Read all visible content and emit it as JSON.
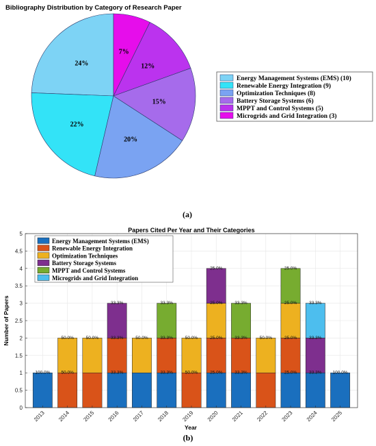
{
  "colors": {
    "pie": [
      "#7DD3F5",
      "#33E3F7",
      "#7AA3F2",
      "#A66BEB",
      "#BB33EE",
      "#E60DEB"
    ],
    "bar_layers": [
      "#1A6FBE",
      "#D95319",
      "#EDB120",
      "#7E2F8E",
      "#77AC30",
      "#4DBEEE"
    ]
  },
  "chart_data": [
    {
      "type": "pie",
      "title": "Bibliography Distribution by Category of Research Paper",
      "panel_label": "(a)",
      "legend_position": "right",
      "slices": [
        {
          "name": "Energy Management Systems (EMS) (10)",
          "value": 10,
          "label": "24%"
        },
        {
          "name": "Renewable Energy Integration (9)",
          "value": 9,
          "label": "22%"
        },
        {
          "name": "Optimization Techniques (8)",
          "value": 8,
          "label": "20%"
        },
        {
          "name": "Battery Storage Systems (6)",
          "value": 6,
          "label": "15%"
        },
        {
          "name": "MPPT and Control Systems (5)",
          "value": 5,
          "label": "12%"
        },
        {
          "name": "Microgrids and Grid Integration (3)",
          "value": 3,
          "label": "7%"
        }
      ]
    },
    {
      "type": "bar",
      "stacked": true,
      "title": "Papers Cited Per Year and Their Categories",
      "panel_label": "(b)",
      "xlabel": "Year",
      "ylabel": "Number of Papers",
      "ylim": [
        0,
        5
      ],
      "yticks": [
        0,
        0.5,
        1,
        1.5,
        2,
        2.5,
        3,
        3.5,
        4,
        4.5,
        5
      ],
      "grid": true,
      "legend_position": "top-left",
      "legend": [
        "Energy Management Systems (EMS)",
        "Renewable Energy Integration",
        "Optimization Techniques",
        "Battery Storage Systems",
        "MPPT and Control Systems",
        "Microgrids and Grid Integration"
      ],
      "categories": [
        "2013",
        "2014",
        "2015",
        "2016",
        "2017",
        "2018",
        "2019",
        "2020",
        "2021",
        "2022",
        "2023",
        "2024",
        "2025"
      ],
      "stacks": [
        [
          {
            "color": 0,
            "value": 1,
            "label": "100.0%"
          }
        ],
        [
          {
            "color": 1,
            "value": 1,
            "label": "50.0%"
          },
          {
            "color": 2,
            "value": 1,
            "label": "50.0%"
          }
        ],
        [
          {
            "color": 1,
            "value": 1,
            "label": ""
          },
          {
            "color": 2,
            "value": 1,
            "label": "50.0%"
          }
        ],
        [
          {
            "color": 0,
            "value": 1,
            "label": "33.3%"
          },
          {
            "color": 1,
            "value": 1,
            "label": "33.3%"
          },
          {
            "color": 3,
            "value": 1,
            "label": "33.3%"
          }
        ],
        [
          {
            "color": 0,
            "value": 1,
            "label": ""
          },
          {
            "color": 2,
            "value": 1,
            "label": "50.0%"
          }
        ],
        [
          {
            "color": 0,
            "value": 1,
            "label": "33.3%"
          },
          {
            "color": 1,
            "value": 1,
            "label": "33.3%"
          },
          {
            "color": 4,
            "value": 1,
            "label": "33.3%"
          }
        ],
        [
          {
            "color": 1,
            "value": 1,
            "label": "50.0%"
          },
          {
            "color": 2,
            "value": 1,
            "label": "50.0%"
          }
        ],
        [
          {
            "color": 0,
            "value": 1,
            "label": "25.0%"
          },
          {
            "color": 1,
            "value": 1,
            "label": "25.0%"
          },
          {
            "color": 2,
            "value": 1,
            "label": "25.0%"
          },
          {
            "color": 3,
            "value": 1,
            "label": "25.0%"
          }
        ],
        [
          {
            "color": 0,
            "value": 1,
            "label": "33.3%"
          },
          {
            "color": 1,
            "value": 1,
            "label": "33.3%"
          },
          {
            "color": 4,
            "value": 1,
            "label": "33.3%"
          }
        ],
        [
          {
            "color": 1,
            "value": 1,
            "label": ""
          },
          {
            "color": 2,
            "value": 1,
            "label": "50.0%"
          }
        ],
        [
          {
            "color": 0,
            "value": 1,
            "label": "25.0%"
          },
          {
            "color": 1,
            "value": 1,
            "label": "25.0%"
          },
          {
            "color": 2,
            "value": 1,
            "label": "25.0%"
          },
          {
            "color": 4,
            "value": 1,
            "label": "25.0%"
          }
        ],
        [
          {
            "color": 0,
            "value": 1,
            "label": "33.3%"
          },
          {
            "color": 3,
            "value": 1,
            "label": "33.3%"
          },
          {
            "color": 5,
            "value": 1,
            "label": "33.3%"
          }
        ],
        [
          {
            "color": 0,
            "value": 1,
            "label": "100.0%"
          }
        ]
      ]
    }
  ]
}
